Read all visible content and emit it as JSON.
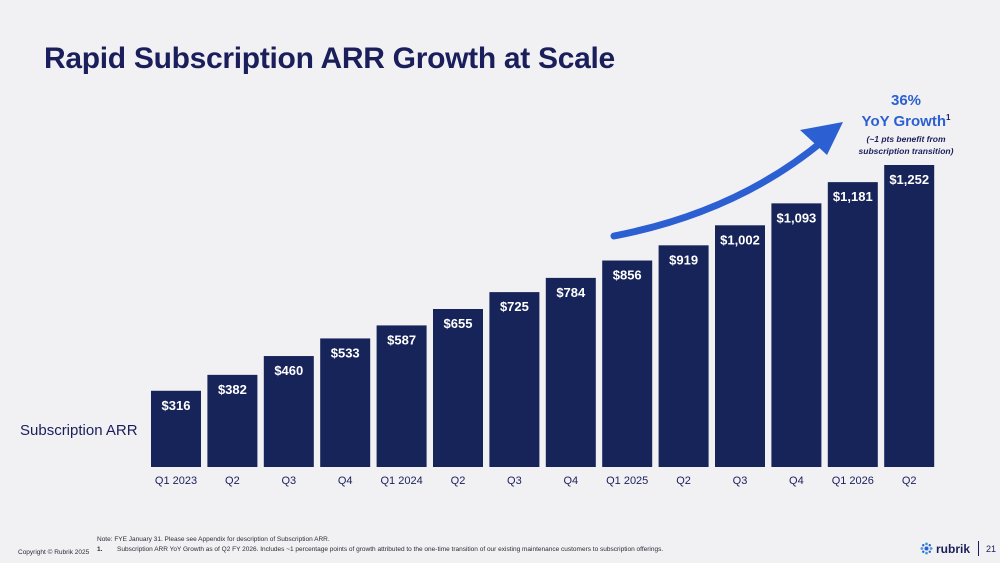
{
  "slide": {
    "title": "Rapid Subscription ARR Growth at Scale",
    "row_label": "Subscription ARR",
    "growth": {
      "percent": "36%",
      "label": "YoY Growth",
      "footnote_marker": "1",
      "note_line1": "(~1 pts benefit from",
      "note_line2": "subscription transition)"
    },
    "footnotes": {
      "note": "Note: FYE January 31. Please see Appendix for description of Subscription ARR.",
      "fn1_num": "1.",
      "fn1_text": "Subscription ARR YoY Growth as of Q2 FY 2026. Includes ~1 percentage points of growth attributed to the one-time transition of our existing maintenance customers to subscription offerings."
    },
    "copyright": "Copyright © Rubrik 2025",
    "brand": "rubrik",
    "page_number": "21"
  },
  "colors": {
    "bar": "#17245a",
    "title": "#1a1f5c",
    "accent_arrow": "#2c5fd1",
    "background": "#f1f1f3"
  },
  "icons": {
    "brand_logo": "rubrik-logo-icon",
    "growth_arrow": "curved-arrow-icon"
  },
  "chart_data": {
    "type": "bar",
    "categories": [
      "Q1 2023",
      "Q2",
      "Q3",
      "Q4",
      "Q1 2024",
      "Q2",
      "Q3",
      "Q4",
      "Q1 2025",
      "Q2",
      "Q3",
      "Q4",
      "Q1 2026",
      "Q2"
    ],
    "values": [
      316,
      382,
      460,
      533,
      587,
      655,
      725,
      784,
      856,
      919,
      1002,
      1093,
      1181,
      1252
    ],
    "value_labels": [
      "$316",
      "$382",
      "$460",
      "$533",
      "$587",
      "$655",
      "$725",
      "$784",
      "$856",
      "$919",
      "$1,002",
      "$1,093",
      "$1,181",
      "$1,252"
    ],
    "title": "Rapid Subscription ARR Growth at Scale",
    "ylabel": "Subscription ARR",
    "xlabel": "",
    "ylim": [
      0,
      1252
    ],
    "grid": false,
    "legend": "none"
  }
}
